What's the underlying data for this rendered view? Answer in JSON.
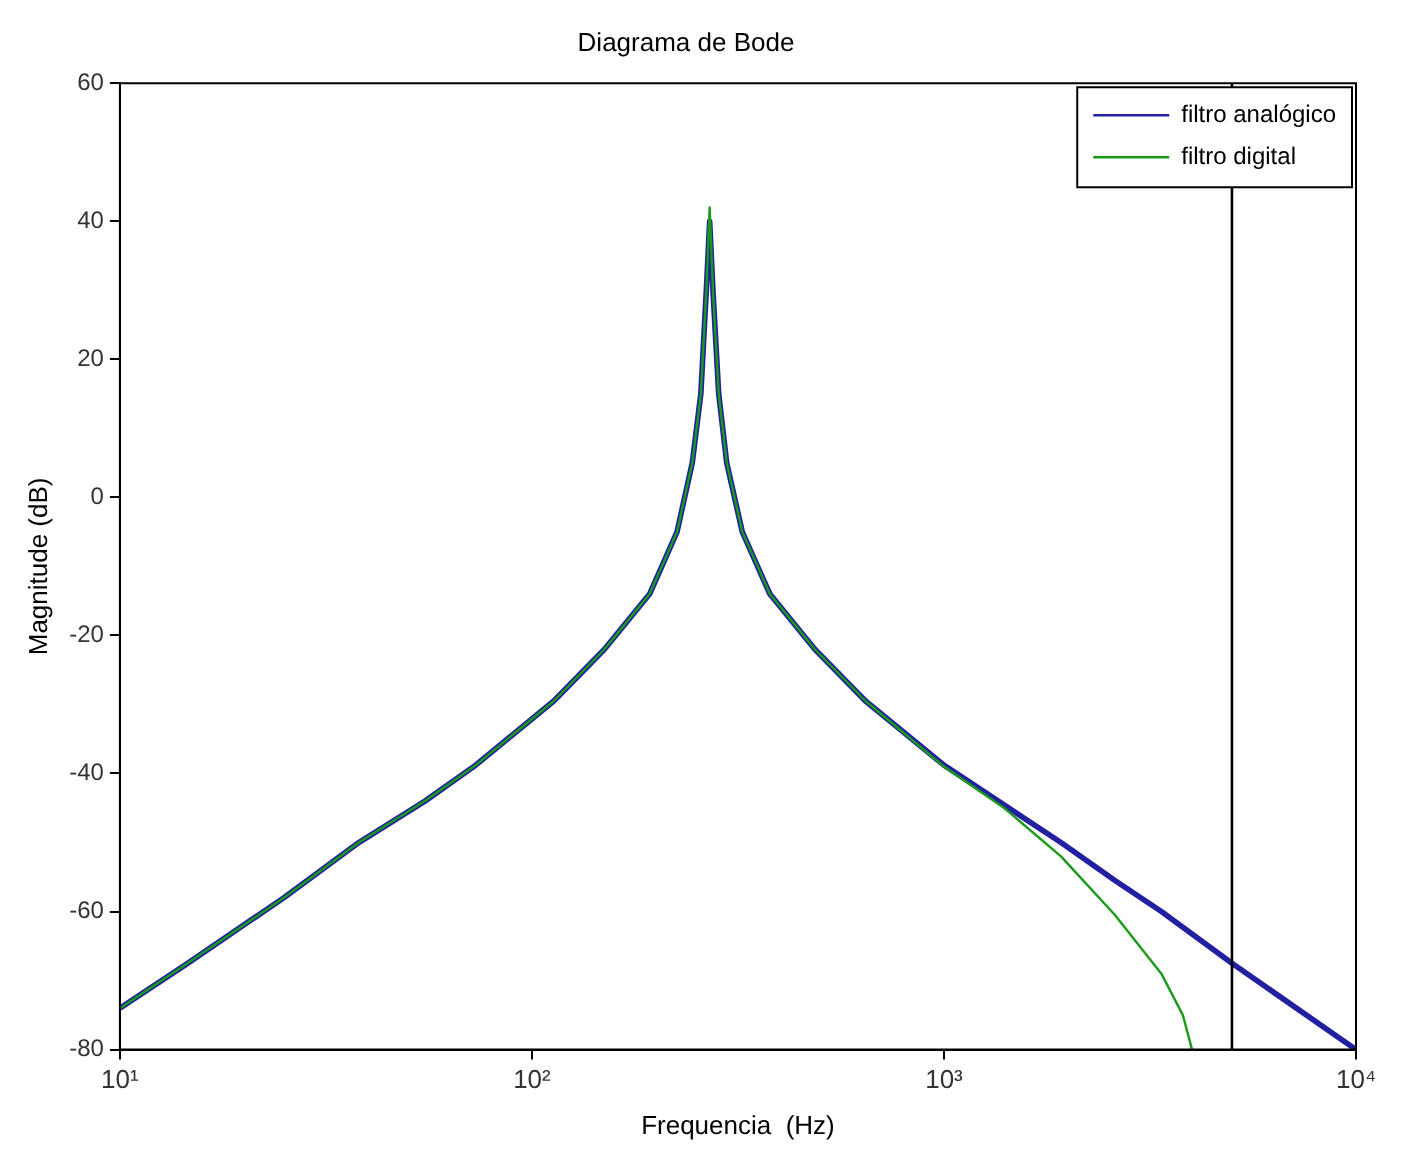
{
  "chart_data": {
    "type": "line",
    "title": "Diagrama de Bode",
    "xlabel": "Frequencia  (Hz)",
    "ylabel": "Magnitude (dB)",
    "log": "x",
    "xlim": [
      10,
      10000
    ],
    "xticks": [
      {
        "value": 10,
        "label": "10¹"
      },
      {
        "value": 100,
        "label": "10²"
      },
      {
        "value": 1000,
        "label": "10³"
      },
      {
        "value": 10000,
        "label": "10⁴"
      }
    ],
    "ylim": [
      -80,
      60
    ],
    "yticks": [
      -80,
      -60,
      -40,
      -20,
      0,
      20,
      40,
      60
    ],
    "grid": false,
    "legend": "top right",
    "marker": "none",
    "line_style": "solid",
    "ref_lines": [
      {
        "axis": "x",
        "value": 5000,
        "color": "#000000"
      }
    ],
    "series": [
      {
        "name": "filtro analógico",
        "color": "#2020a0",
        "x": [
          10,
          14.6,
          25,
          38,
          55,
          73,
          113,
          150,
          193,
          225,
          245,
          257,
          265,
          270,
          275,
          284,
          297,
          324,
          378,
          486,
          645,
          1000,
          1923,
          2600,
          3370,
          5000,
          10000
        ],
        "values": [
          -74,
          -67.5,
          -58,
          -50,
          -44,
          -38.8,
          -29.5,
          -22,
          -14,
          -5,
          5,
          15,
          30,
          40,
          30,
          15,
          5,
          -5,
          -14,
          -22,
          -29.5,
          -38.8,
          -50,
          -55.5,
          -60,
          -67.5,
          -80
        ]
      },
      {
        "name": "filtro digital",
        "color": "#1a9a1a",
        "x": [
          10,
          14.6,
          25,
          38,
          55,
          73,
          113,
          150,
          193,
          225,
          245,
          257,
          265,
          270,
          275,
          284,
          297,
          324,
          378,
          486,
          645,
          1000,
          1400,
          1923,
          2600,
          3370,
          3800,
          4000
        ],
        "values": [
          -74,
          -67.5,
          -58,
          -50,
          -44,
          -38.8,
          -29.5,
          -22,
          -14,
          -5,
          5,
          15,
          30,
          42,
          30,
          15,
          5,
          -5,
          -14,
          -22,
          -29.5,
          -39,
          -45,
          -52,
          -60.5,
          -69,
          -75,
          -80
        ]
      }
    ]
  }
}
